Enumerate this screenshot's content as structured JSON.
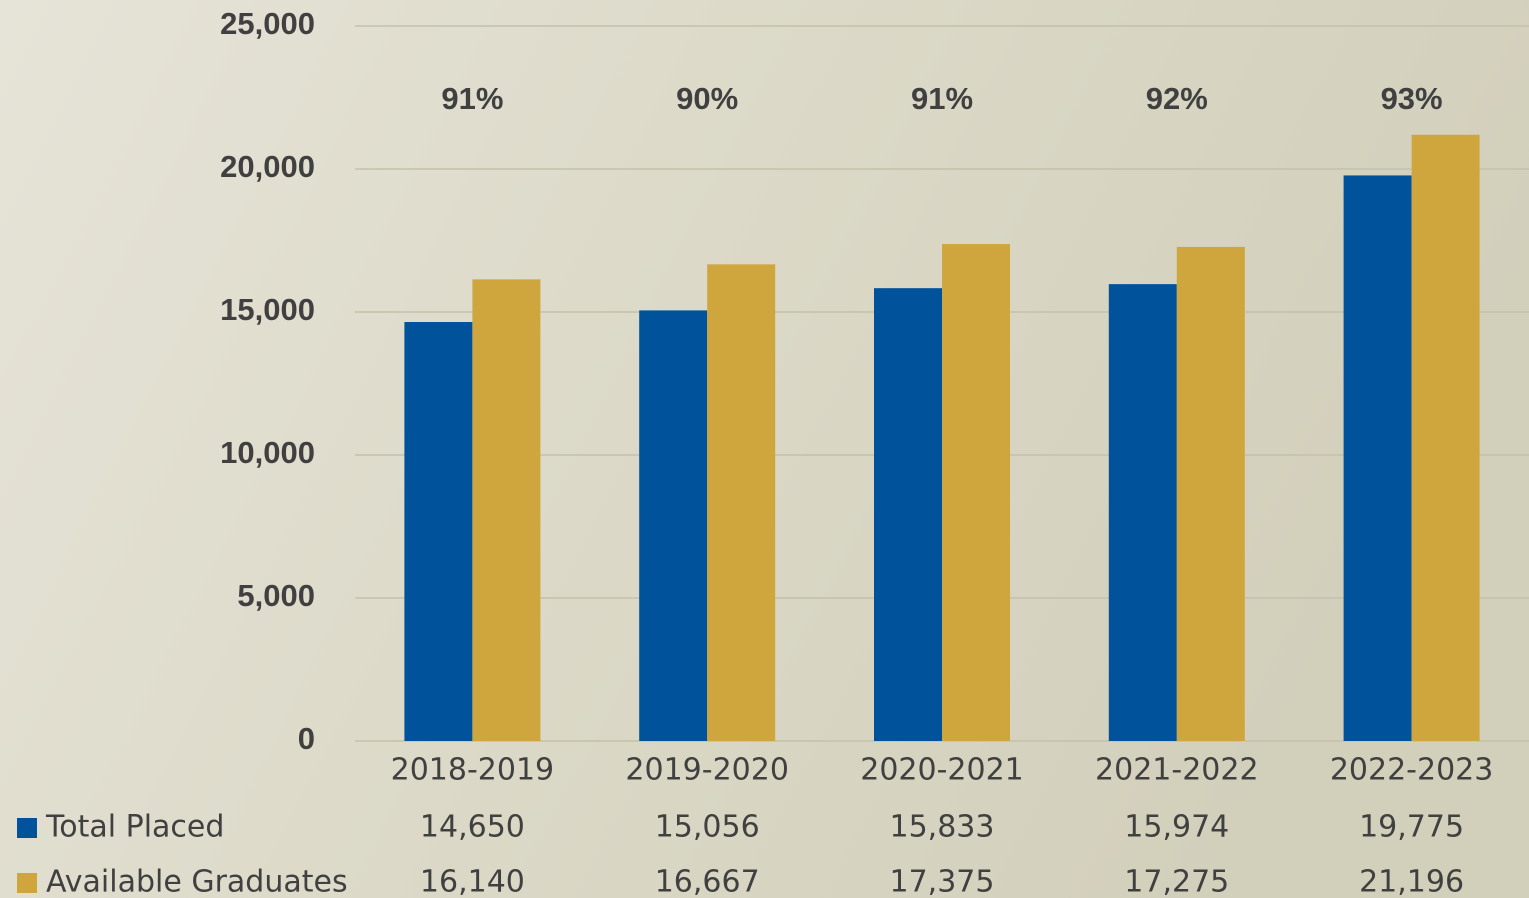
{
  "chart_data": {
    "type": "bar",
    "categories": [
      "2018-2019",
      "2019-2020",
      "2020-2021",
      "2021-2022",
      "2022-2023"
    ],
    "series": [
      {
        "name": "Total Placed",
        "color": "#00529b",
        "values": [
          14650,
          15056,
          15833,
          15974,
          19775
        ],
        "value_labels": [
          "14,650",
          "15,056",
          "15,833",
          "15,974",
          "19,775"
        ]
      },
      {
        "name": "Available Graduates",
        "color": "#cfa53e",
        "values": [
          16140,
          16667,
          17375,
          17275,
          21196
        ],
        "value_labels": [
          "16,140",
          "16,667",
          "17,375",
          "17,275",
          "21,196"
        ]
      }
    ],
    "annotations": [
      "91%",
      "90%",
      "91%",
      "92%",
      "93%"
    ],
    "ylim": [
      0,
      25000
    ],
    "yticks": [
      0,
      {
        "value": 5000,
        "label": "5,000"
      },
      {
        "value": 10000,
        "label": "10,000"
      },
      {
        "value": 15000,
        "label": "15,000"
      },
      {
        "value": 20000,
        "label": "20,000"
      },
      {
        "value": 25000,
        "label": "25,000"
      }
    ],
    "grid": true
  }
}
